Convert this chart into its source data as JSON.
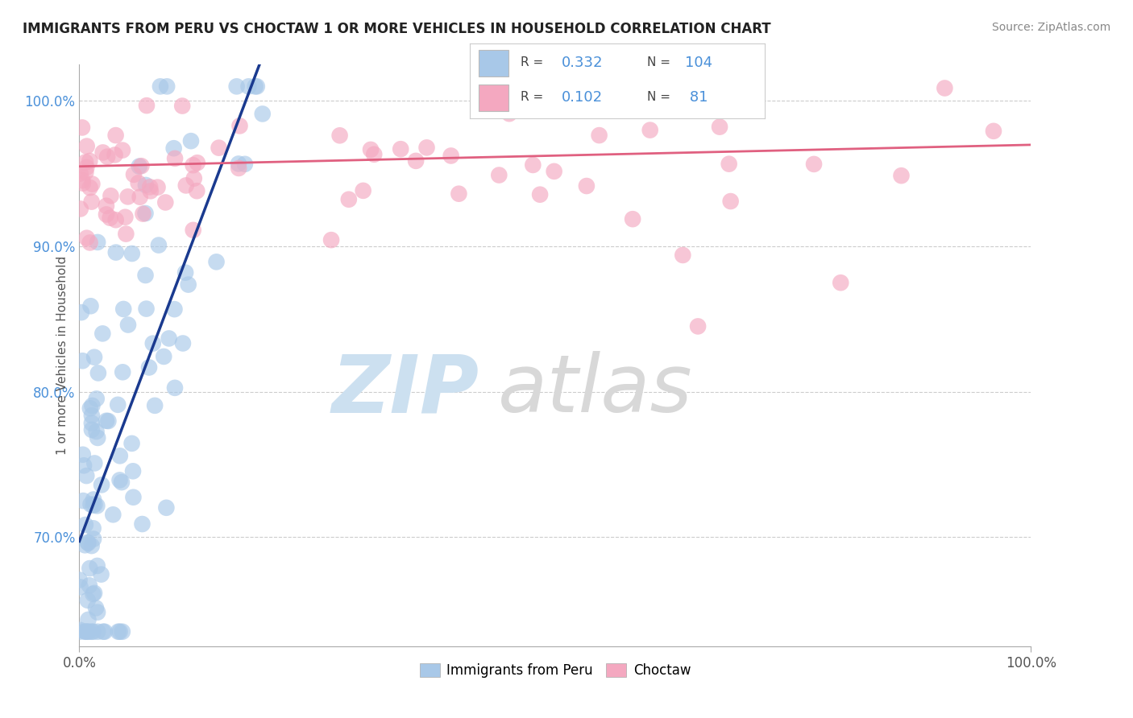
{
  "title": "IMMIGRANTS FROM PERU VS CHOCTAW 1 OR MORE VEHICLES IN HOUSEHOLD CORRELATION CHART",
  "source": "Source: ZipAtlas.com",
  "ylabel": "1 or more Vehicles in Household",
  "xlim": [
    0.0,
    1.0
  ],
  "ylim": [
    0.625,
    1.025
  ],
  "yticks": [
    0.7,
    0.8,
    0.9,
    1.0
  ],
  "ytick_labels": [
    "70.0%",
    "80.0%",
    "90.0%",
    "100.0%"
  ],
  "xtick_labels": [
    "0.0%",
    "100.0%"
  ],
  "peru_R": 0.332,
  "peru_N": 104,
  "choctaw_R": 0.102,
  "choctaw_N": 81,
  "peru_color": "#a8c8e8",
  "choctaw_color": "#f4a8c0",
  "peru_line_color": "#1a3a8f",
  "choctaw_line_color": "#e06080",
  "background_color": "#ffffff",
  "grid_color": "#cccccc",
  "watermark_zip_color": "#cce0f0",
  "watermark_atlas_color": "#d8d8d8",
  "right_tick_color": "#4a90d9",
  "legend_label1": "Immigrants from Peru",
  "legend_label2": "Choctaw"
}
